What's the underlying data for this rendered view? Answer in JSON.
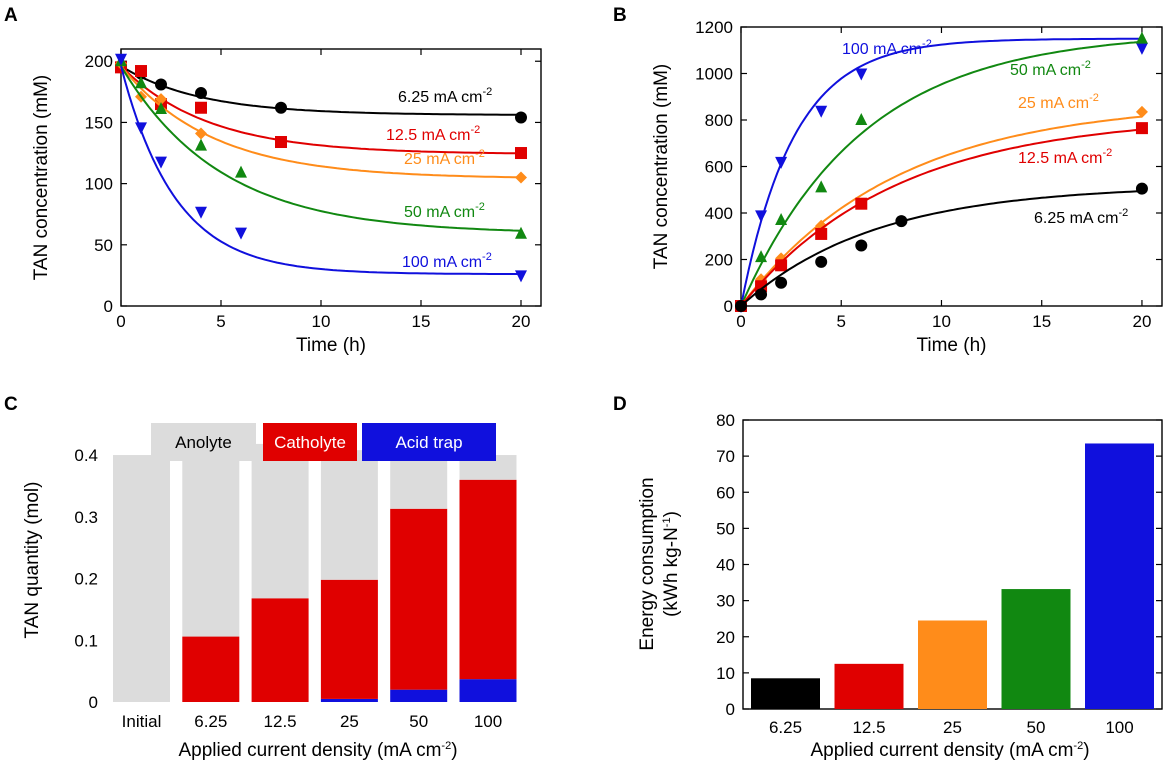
{
  "colors": {
    "6.25": "#000000",
    "12.5": "#e00000",
    "25": "#ff8c1a",
    "50": "#118811",
    "100": "#1010dd",
    "anolyte": "#dcdcdc",
    "catholyte": "#e00000",
    "acid_trap": "#1010dd"
  },
  "chart_data": [
    {
      "panel": "A",
      "type": "scatter",
      "xlabel": "Time (h)",
      "ylabel": "TAN concentration (mM)",
      "xlim": [
        0,
        21
      ],
      "ylim": [
        0,
        210
      ],
      "xticks": [
        "0",
        "5",
        "10",
        "15",
        "20"
      ],
      "yticks": [
        "0",
        "50",
        "100",
        "150",
        "200"
      ],
      "series": [
        {
          "key": "6.25",
          "label": "6.25 mA cm",
          "sup": "-2",
          "marker": "circle",
          "x": [
            0,
            1,
            2,
            4,
            8,
            20
          ],
          "y": [
            196,
            190,
            181,
            174,
            162,
            154
          ],
          "fit": {
            "y0": 196,
            "yinf": 156,
            "k": 0.25
          }
        },
        {
          "key": "12.5",
          "label": "12.5 mA cm",
          "sup": "-2",
          "marker": "square",
          "x": [
            0,
            1,
            2,
            4,
            8,
            20
          ],
          "y": [
            195,
            192,
            165,
            162,
            134,
            125
          ],
          "fit": {
            "y0": 196,
            "yinf": 124,
            "k": 0.23
          }
        },
        {
          "key": "25",
          "label": "25 mA cm",
          "sup": "-2",
          "marker": "diamond",
          "x": [
            0,
            1,
            2,
            4,
            20
          ],
          "y": [
            198,
            171,
            169,
            141,
            105
          ],
          "fit": {
            "y0": 196,
            "yinf": 104,
            "k": 0.22
          }
        },
        {
          "key": "50",
          "label": "50 mA cm",
          "sup": "-2",
          "marker": "triangle-up",
          "x": [
            0,
            1,
            2,
            4,
            6,
            20
          ],
          "y": [
            200,
            182,
            161,
            131,
            109,
            59
          ],
          "fit": {
            "y0": 196,
            "yinf": 59,
            "k": 0.2
          }
        },
        {
          "key": "100",
          "label": "100 mA cm",
          "sup": "-2",
          "marker": "triangle-down",
          "x": [
            0,
            1,
            2,
            4,
            6,
            20
          ],
          "y": [
            202,
            146,
            118,
            77,
            60,
            25
          ],
          "fit": {
            "y0": 196,
            "yinf": 26,
            "k": 0.37
          }
        }
      ]
    },
    {
      "panel": "B",
      "type": "scatter",
      "xlabel": "Time (h)",
      "ylabel": "TAN concentration (mM)",
      "xlim": [
        0,
        21
      ],
      "ylim": [
        0,
        1200
      ],
      "xticks": [
        "0",
        "5",
        "10",
        "15",
        "20"
      ],
      "yticks": [
        "0",
        "200",
        "400",
        "600",
        "800",
        "1000",
        "1200"
      ],
      "series": [
        {
          "key": "100",
          "label": "100 mA cm",
          "sup": "-2",
          "marker": "triangle-down",
          "x": [
            0,
            1,
            2,
            4,
            6,
            20
          ],
          "y": [
            0,
            390,
            620,
            840,
            1000,
            1110
          ],
          "fit": {
            "y0": 0,
            "yinf": 1150,
            "k": 0.38
          }
        },
        {
          "key": "50",
          "label": "50 mA cm",
          "sup": "-2",
          "marker": "triangle-up",
          "x": [
            0,
            1,
            2,
            4,
            6,
            20
          ],
          "y": [
            0,
            210,
            370,
            510,
            800,
            1150
          ],
          "fit": {
            "y0": 0,
            "yinf": 1180,
            "k": 0.165
          }
        },
        {
          "key": "25",
          "label": "25 mA cm",
          "sup": "-2",
          "marker": "diamond",
          "x": [
            0,
            1,
            2,
            4,
            20
          ],
          "y": [
            0,
            115,
            205,
            345,
            835
          ],
          "fit": {
            "y0": 0,
            "yinf": 880,
            "k": 0.13
          }
        },
        {
          "key": "12.5",
          "label": "12.5 mA cm",
          "sup": "-2",
          "marker": "square",
          "x": [
            0,
            1,
            2,
            4,
            6,
            20
          ],
          "y": [
            0,
            85,
            175,
            310,
            440,
            765
          ],
          "fit": {
            "y0": 0,
            "yinf": 820,
            "k": 0.13
          }
        },
        {
          "key": "6.25",
          "label": "6.25 mA cm",
          "sup": "-2",
          "marker": "circle",
          "x": [
            0,
            1,
            2,
            4,
            6,
            8,
            20
          ],
          "y": [
            0,
            50,
            100,
            190,
            260,
            365,
            505
          ],
          "fit": {
            "y0": 0,
            "yinf": 520,
            "k": 0.15
          }
        }
      ]
    },
    {
      "panel": "C",
      "type": "bar",
      "stacked": true,
      "xlabel": "Applied current density (mA cm",
      "xlabel_sup": "-2",
      "xlabel_end": ")",
      "ylabel": "TAN quantity (mol)",
      "ylim": [
        0,
        0.46
      ],
      "yticks": [
        "0",
        "0.1",
        "0.2",
        "0.3",
        "0.4"
      ],
      "categories": [
        "Initial",
        "6.25",
        "12.5",
        "25",
        "50",
        "100"
      ],
      "legend": [
        "Anolyte",
        "Catholyte",
        "Acid trap"
      ],
      "series": [
        {
          "name": "Acid trap",
          "values": [
            0,
            0,
            0,
            0.005,
            0.02,
            0.037
          ]
        },
        {
          "name": "Catholyte",
          "values": [
            0,
            0.106,
            0.168,
            0.193,
            0.293,
            0.323
          ]
        },
        {
          "name": "Anolyte",
          "values": [
            0.4,
            0.305,
            0.25,
            0.21,
            0.11,
            0.04
          ]
        }
      ]
    },
    {
      "panel": "D",
      "type": "bar",
      "xlabel": "Applied current density (mA cm",
      "xlabel_sup": "-2",
      "xlabel_end": ")",
      "ylabel_line1": "Energy  consumption",
      "ylabel_line2": "(kWh kg-N",
      "ylabel_sup": "-1",
      "ylabel_end": ")",
      "ylim": [
        0,
        80
      ],
      "yticks": [
        "0",
        "10",
        "20",
        "30",
        "40",
        "50",
        "60",
        "70",
        "80"
      ],
      "categories": [
        "6.25",
        "12.5",
        "25",
        "50",
        "100"
      ],
      "values": [
        8.5,
        12.5,
        24.5,
        33.2,
        73.5
      ]
    }
  ]
}
